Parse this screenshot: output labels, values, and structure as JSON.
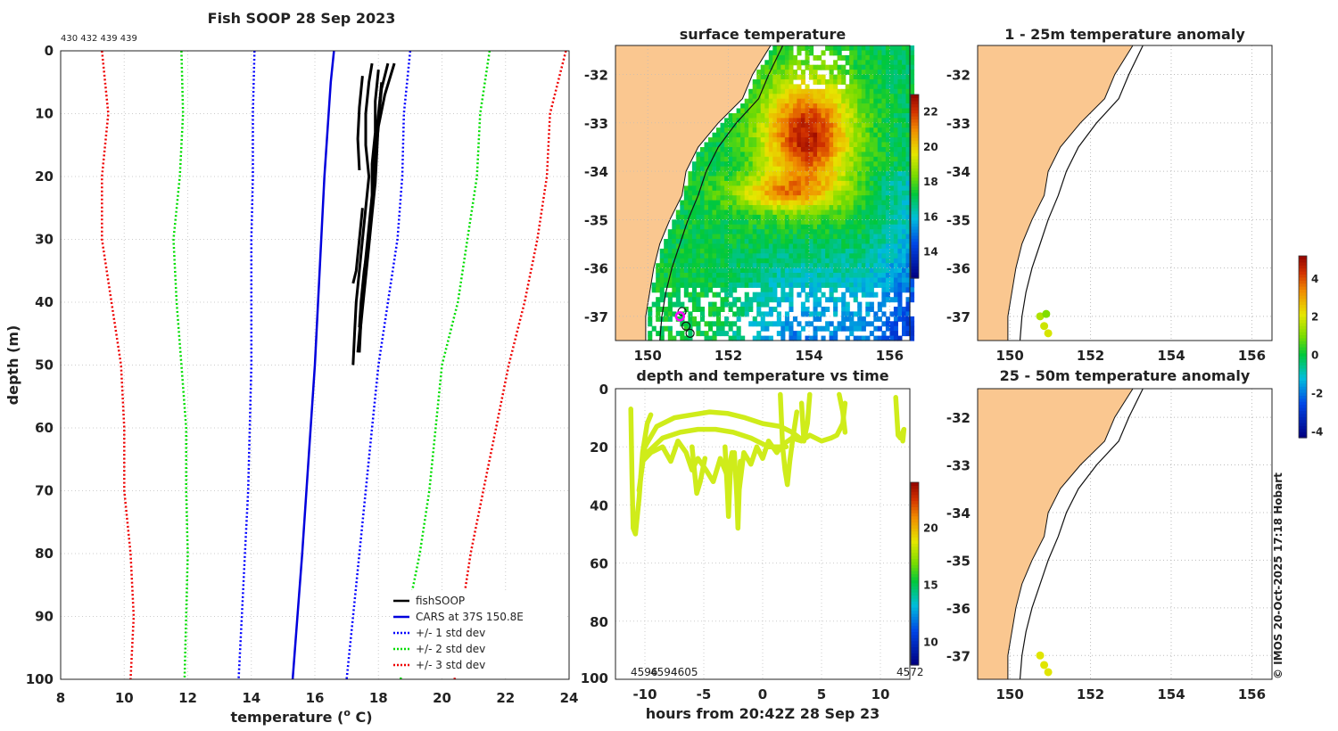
{
  "chart_data": [
    {
      "type": "line",
      "title": "Fish SOOP 28 Sep 2023",
      "top_annotation": "430 432 439 439",
      "xlabel": "temperature (o C)",
      "xlabel_main": "temperature (",
      "xlabel_sup": "o",
      "xlabel_tail": " C)",
      "ylabel": "depth (m)",
      "xlim": [
        8,
        24
      ],
      "ylim": [
        0,
        100
      ],
      "xticks": [
        8,
        10,
        12,
        14,
        16,
        18,
        20,
        22,
        24
      ],
      "yticks": [
        0,
        10,
        20,
        30,
        40,
        50,
        60,
        70,
        80,
        90,
        100
      ],
      "series": [
        {
          "name": "fishSOOP",
          "color": "#000000",
          "style": "solid",
          "profiles": [
            {
              "depth": [
                2,
                5,
                10,
                15,
                20,
                25,
                30,
                35,
                40,
                45,
                50
              ],
              "temp": [
                17.8,
                17.7,
                17.6,
                17.6,
                17.7,
                17.6,
                17.5,
                17.4,
                17.3,
                17.25,
                17.2
              ]
            },
            {
              "depth": [
                3,
                8,
                13,
                18,
                23,
                28,
                33,
                38,
                43,
                48
              ],
              "temp": [
                18.0,
                17.9,
                17.9,
                17.8,
                17.8,
                17.7,
                17.6,
                17.5,
                17.45,
                17.4
              ]
            },
            {
              "depth": [
                2,
                6,
                11,
                16,
                21,
                26,
                31,
                36,
                41,
                46
              ],
              "temp": [
                18.3,
                18.1,
                18.0,
                17.95,
                17.9,
                17.8,
                17.7,
                17.6,
                17.5,
                17.4
              ]
            },
            {
              "depth": [
                4,
                9,
                14,
                19
              ],
              "temp": [
                17.5,
                17.4,
                17.35,
                17.4
              ]
            },
            {
              "depth": [
                5,
                10,
                15,
                20,
                25,
                30,
                35,
                40,
                44
              ],
              "temp": [
                18.1,
                18.0,
                17.9,
                17.85,
                17.8,
                17.7,
                17.55,
                17.45,
                17.4
              ]
            },
            {
              "depth": [
                25,
                30,
                35,
                37
              ],
              "temp": [
                17.5,
                17.4,
                17.3,
                17.2
              ]
            },
            {
              "depth": [
                2,
                7,
                12,
                17,
                22,
                27,
                32,
                37,
                42,
                48
              ],
              "temp": [
                18.5,
                18.2,
                18.0,
                17.9,
                17.85,
                17.75,
                17.65,
                17.55,
                17.45,
                17.35
              ]
            }
          ]
        },
        {
          "name": "CARS at 37S 150.8E",
          "color": "#0000dd",
          "style": "solid",
          "depth": [
            0,
            5,
            20,
            50,
            80,
            100
          ],
          "temp": [
            16.6,
            16.5,
            16.3,
            16.0,
            15.6,
            15.3
          ]
        },
        {
          "name": "+/- 1 std dev",
          "color": "#0000ff",
          "style": "dotted",
          "depth": [
            0,
            10,
            20,
            30,
            40,
            50,
            60,
            70,
            80,
            90,
            100
          ],
          "lower": [
            14.1,
            14.05,
            14.05,
            14.0,
            14.0,
            14.0,
            13.95,
            13.9,
            13.8,
            13.7,
            13.6
          ],
          "upper": [
            19.0,
            18.8,
            18.75,
            18.6,
            18.3,
            18.0,
            17.8,
            17.6,
            17.4,
            17.2,
            17.0
          ]
        },
        {
          "name": "+/- 2 std dev",
          "color": "#00dd00",
          "style": "dotted",
          "depth": [
            0,
            10,
            20,
            30,
            40,
            50,
            60,
            70,
            80,
            90,
            100
          ],
          "lower": [
            11.8,
            11.85,
            11.75,
            11.55,
            11.65,
            11.8,
            11.95,
            11.95,
            12.0,
            11.95,
            11.9
          ],
          "upper": [
            21.5,
            21.2,
            21.1,
            20.8,
            20.5,
            20.0,
            19.8,
            19.6,
            19.3,
            18.9,
            18.7
          ]
        },
        {
          "name": "+/- 3 std dev",
          "color": "#ee0000",
          "style": "dotted",
          "depth": [
            0,
            10,
            20,
            30,
            40,
            50,
            60,
            70,
            80,
            90,
            100
          ],
          "lower": [
            9.3,
            9.5,
            9.3,
            9.3,
            9.6,
            9.9,
            10.0,
            10.0,
            10.2,
            10.3,
            10.2
          ],
          "upper": [
            23.9,
            23.4,
            23.3,
            23.0,
            22.6,
            22.1,
            21.7,
            21.3,
            20.9,
            20.6,
            20.4
          ]
        }
      ],
      "legend_position": "bottom-right"
    },
    {
      "type": "heatmap",
      "title": "surface temperature",
      "xlim": [
        149.2,
        156.5
      ],
      "ylim": [
        -37.5,
        -31.4
      ],
      "xticks": [
        150,
        152,
        154,
        156
      ],
      "yticks": [
        -32,
        -33,
        -34,
        -35,
        -36,
        -37
      ],
      "colorbar": {
        "min": 12.5,
        "max": 23,
        "ticks": [
          14,
          16,
          18,
          20,
          22
        ]
      },
      "markers": [
        [
          150.85,
          -36.9
        ],
        [
          150.8,
          -37.0
        ],
        [
          150.95,
          -37.2
        ],
        [
          151.05,
          -37.35
        ]
      ]
    },
    {
      "type": "scatter",
      "title": "depth and temperature vs time",
      "xlabel": "hours from 20:42Z 28 Sep 23",
      "xlim": [
        -12.5,
        12.5
      ],
      "ylim": [
        0,
        100
      ],
      "xticks": [
        -10,
        -5,
        0,
        5,
        10
      ],
      "yticks": [
        0,
        20,
        40,
        60,
        80
      ],
      "bottom_labels": [
        "4596",
        "4594",
        "4605",
        "4572"
      ],
      "colorbar": {
        "min": 8,
        "max": 24,
        "ticks": [
          10,
          15,
          20
        ]
      }
    },
    {
      "type": "scatter",
      "title": "1 - 25m temperature anomaly",
      "xlim": [
        149.2,
        156.5
      ],
      "ylim": [
        -37.5,
        -31.4
      ],
      "xticks": [
        150,
        152,
        154,
        156
      ],
      "yticks": [
        -32,
        -33,
        -34,
        -35,
        -36,
        -37
      ],
      "points": [
        [
          150.75,
          -37.0,
          1.5
        ],
        [
          150.9,
          -36.95,
          1.0
        ],
        [
          150.85,
          -37.2,
          1.8
        ],
        [
          150.95,
          -37.35,
          1.9
        ]
      ]
    },
    {
      "type": "scatter",
      "title": "25 - 50m temperature anomaly",
      "xlim": [
        149.2,
        156.5
      ],
      "ylim": [
        -37.5,
        -31.4
      ],
      "xticks": [
        150,
        152,
        154,
        156
      ],
      "yticks": [
        -32,
        -33,
        -34,
        -35,
        -36,
        -37
      ],
      "points": [
        [
          150.75,
          -37.0,
          2.0
        ],
        [
          150.85,
          -37.2,
          2.0
        ],
        [
          150.95,
          -37.35,
          2.0
        ]
      ]
    },
    {
      "type": "colorbar",
      "min": -4.3,
      "max": 5.2,
      "ticks": [
        4,
        2,
        0,
        -2,
        -4
      ]
    }
  ],
  "footer": {
    "copyright": "© IMOS 20-Oct-2025 17:18 Hobart"
  }
}
